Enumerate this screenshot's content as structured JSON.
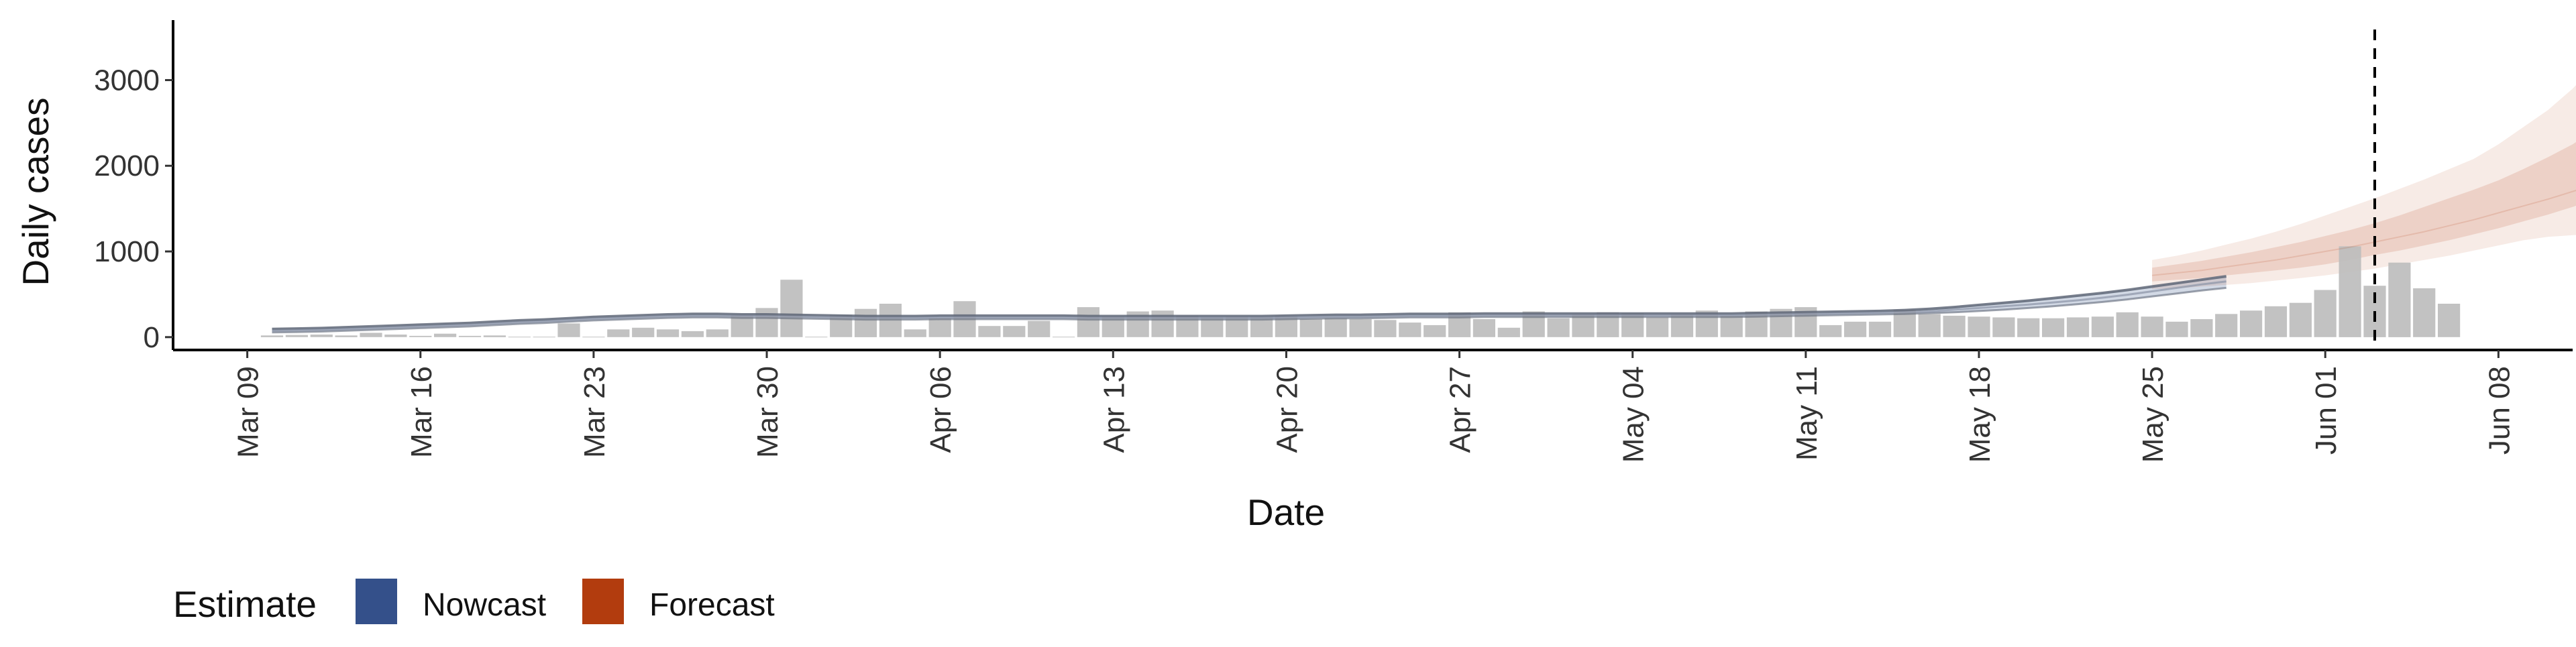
{
  "chart_data": {
    "type": "bar",
    "title": "",
    "xlabel": "Date",
    "ylabel": "Daily cases",
    "ylim": [
      -150,
      3700
    ],
    "xlim": [
      "2020-03-06",
      "2020-06-11"
    ],
    "y_ticks": [
      0,
      1000,
      2000,
      3000
    ],
    "y_tick_labels": [
      "0",
      "1000",
      "2000",
      "3000"
    ],
    "x_ticks": [
      "2020-03-09",
      "2020-03-16",
      "2020-03-23",
      "2020-03-30",
      "2020-04-06",
      "2020-04-13",
      "2020-04-20",
      "2020-04-27",
      "2020-05-04",
      "2020-05-11",
      "2020-05-18",
      "2020-05-25",
      "2020-06-01",
      "2020-06-08"
    ],
    "x_tick_labels": [
      "Mar 09",
      "Mar 16",
      "Mar 23",
      "Mar 30",
      "Apr 06",
      "Apr 13",
      "Apr 20",
      "Apr 27",
      "May 04",
      "May 11",
      "May 18",
      "May 25",
      "Jun 01",
      "Jun 08"
    ],
    "grid": false,
    "legend_position": "bottom-left",
    "bar_color": "#bdbdbd",
    "cases_start": "2020-03-10",
    "daily_cases": [
      20,
      25,
      30,
      20,
      50,
      30,
      15,
      40,
      15,
      20,
      5,
      5,
      160,
      5,
      90,
      110,
      90,
      70,
      90,
      260,
      340,
      670,
      5,
      260,
      330,
      390,
      90,
      220,
      420,
      130,
      130,
      190,
      5,
      350,
      240,
      300,
      310,
      250,
      230,
      240,
      240,
      250,
      210,
      220,
      210,
      200,
      170,
      140,
      290,
      210,
      110,
      300,
      220,
      270,
      290,
      280,
      230,
      270,
      310,
      250,
      300,
      330,
      350,
      140,
      180,
      180,
      320,
      270,
      250,
      240,
      230,
      220,
      220,
      230,
      240,
      290,
      240,
      180,
      210,
      270,
      310,
      360,
      400,
      550,
      1060,
      600,
      870,
      570,
      390
    ],
    "forecast_date_marker": "2020-06-03",
    "legend": {
      "title": "Estimate",
      "items": [
        {
          "label": "Nowcast",
          "color": "#34508a"
        },
        {
          "label": "Forecast",
          "color": "#b23c0e"
        }
      ]
    },
    "series": [
      {
        "name": "Nowcast",
        "start": "2020-03-10",
        "median": [
          75,
          80,
          85,
          95,
          105,
          115,
          125,
          135,
          145,
          160,
          175,
          185,
          200,
          215,
          225,
          235,
          245,
          250,
          250,
          245,
          245,
          240,
          235,
          230,
          225,
          225,
          225,
          230,
          230,
          230,
          230,
          230,
          230,
          225,
          225,
          225,
          225,
          225,
          225,
          225,
          225,
          230,
          235,
          240,
          240,
          245,
          250,
          250,
          250,
          255,
          255,
          255,
          255,
          255,
          255,
          255,
          255,
          255,
          255,
          255,
          260,
          265,
          270,
          275,
          280,
          285,
          290,
          300,
          320,
          340,
          360,
          380,
          405,
          430,
          460,
          495,
          535,
          575,
          615,
          650
        ],
        "lower": [
          55,
          60,
          65,
          75,
          85,
          95,
          105,
          115,
          125,
          140,
          155,
          165,
          180,
          195,
          205,
          215,
          225,
          230,
          230,
          225,
          225,
          220,
          215,
          210,
          205,
          205,
          205,
          210,
          210,
          210,
          210,
          210,
          210,
          205,
          205,
          205,
          205,
          205,
          205,
          205,
          205,
          210,
          215,
          220,
          220,
          225,
          230,
          230,
          230,
          235,
          235,
          235,
          235,
          235,
          235,
          235,
          235,
          235,
          235,
          235,
          240,
          245,
          250,
          255,
          260,
          265,
          270,
          280,
          290,
          305,
          320,
          340,
          360,
          385,
          410,
          440,
          475,
          510,
          545,
          575
        ],
        "upper": [
          95,
          100,
          105,
          115,
          125,
          135,
          145,
          155,
          165,
          180,
          195,
          205,
          220,
          235,
          245,
          255,
          265,
          270,
          270,
          265,
          265,
          260,
          255,
          250,
          245,
          245,
          245,
          250,
          250,
          250,
          250,
          250,
          250,
          245,
          245,
          245,
          245,
          245,
          245,
          245,
          245,
          250,
          255,
          260,
          260,
          265,
          270,
          270,
          270,
          275,
          275,
          275,
          275,
          275,
          275,
          275,
          275,
          275,
          275,
          275,
          280,
          285,
          290,
          295,
          300,
          305,
          315,
          330,
          350,
          375,
          400,
          425,
          455,
          485,
          515,
          550,
          590,
          630,
          670,
          710
        ]
      },
      {
        "name": "Forecast",
        "start": "2020-05-25",
        "median": [
          720,
          750,
          780,
          820,
          860,
          900,
          950,
          1000,
          1050,
          1110,
          1170,
          1230,
          1300,
          1370,
          1450,
          1530,
          1610,
          1700,
          1790,
          1880
        ],
        "lower_50": [
          650,
          670,
          690,
          720,
          750,
          780,
          810,
          850,
          900,
          960,
          1010,
          1070,
          1130,
          1200,
          1270,
          1350,
          1430,
          1520,
          1620,
          1730
        ],
        "upper_50": [
          810,
          850,
          890,
          940,
          990,
          1050,
          1110,
          1180,
          1250,
          1330,
          1420,
          1520,
          1620,
          1720,
          1830,
          1960,
          2100,
          2250,
          2450,
          2700
        ],
        "lower_90": [
          560,
          570,
          590,
          610,
          630,
          660,
          690,
          720,
          760,
          800,
          850,
          900,
          950,
          1010,
          1070,
          1130,
          1170,
          1190,
          1210,
          1230
        ],
        "upper_90": [
          900,
          950,
          1010,
          1080,
          1150,
          1230,
          1320,
          1420,
          1520,
          1620,
          1730,
          1840,
          1960,
          2080,
          2250,
          2450,
          2650,
          2900,
          3200,
          3520
        ]
      }
    ]
  }
}
